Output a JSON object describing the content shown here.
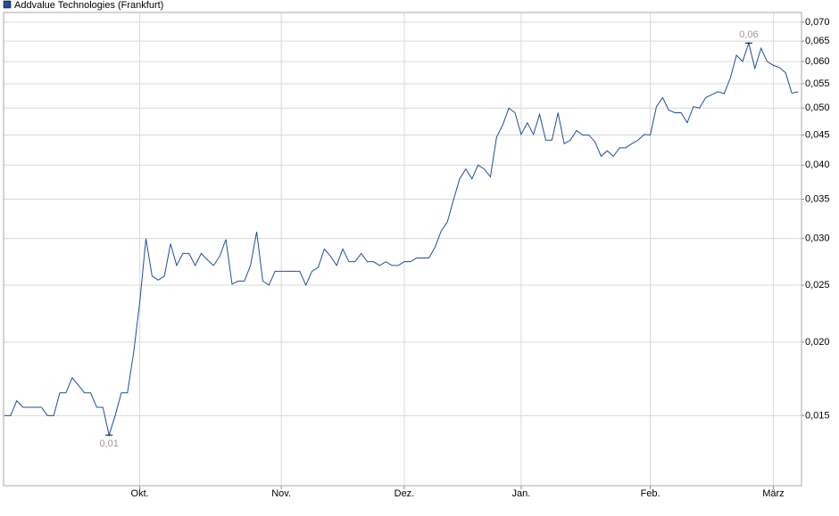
{
  "chart_data": {
    "type": "line",
    "ylog": true,
    "grid": true,
    "legend": "top-left",
    "ylim": [
      0.0114,
      0.0727
    ],
    "yticks": [
      {
        "value": 0.015,
        "label": "0,015"
      },
      {
        "value": 0.02,
        "label": "0,020"
      },
      {
        "value": 0.025,
        "label": "0,025"
      },
      {
        "value": 0.03,
        "label": "0,030"
      },
      {
        "value": 0.035,
        "label": "0,035"
      },
      {
        "value": 0.04,
        "label": "0,040"
      },
      {
        "value": 0.045,
        "label": "0,045"
      },
      {
        "value": 0.05,
        "label": "0,050"
      },
      {
        "value": 0.055,
        "label": "0,055"
      },
      {
        "value": 0.06,
        "label": "0,060"
      },
      {
        "value": 0.065,
        "label": "0,065"
      },
      {
        "value": 0.07,
        "label": "0,070"
      }
    ],
    "xlim": [
      0,
      129
    ],
    "xticks": [
      {
        "value": 22,
        "label": "Okt."
      },
      {
        "value": 45,
        "label": "Nov."
      },
      {
        "value": 65,
        "label": "Dez."
      },
      {
        "value": 84,
        "label": "Jan."
      },
      {
        "value": 105,
        "label": "Feb."
      },
      {
        "value": 125,
        "label": "März"
      }
    ],
    "series": [
      {
        "name": "Addvalue Technologies (Frankfurt)",
        "color": "#1f4e9c",
        "values": [
          0.015,
          0.015,
          0.0159,
          0.0155,
          0.0155,
          0.0155,
          0.0155,
          0.015,
          0.015,
          0.0164,
          0.0164,
          0.0174,
          0.0169,
          0.0164,
          0.0164,
          0.0155,
          0.0155,
          0.0139,
          0.015,
          0.0164,
          0.0164,
          0.0192,
          0.0234,
          0.03,
          0.0259,
          0.0255,
          0.0259,
          0.0294,
          0.027,
          0.0283,
          0.0283,
          0.027,
          0.0283,
          0.0276,
          0.027,
          0.028,
          0.0299,
          0.0251,
          0.0254,
          0.0254,
          0.027,
          0.0308,
          0.0254,
          0.025,
          0.0264,
          0.0264,
          0.0264,
          0.0264,
          0.0264,
          0.025,
          0.0264,
          0.0268,
          0.0288,
          0.028,
          0.027,
          0.0288,
          0.0274,
          0.0274,
          0.0283,
          0.0274,
          0.0274,
          0.027,
          0.0274,
          0.027,
          0.027,
          0.0274,
          0.0274,
          0.0278,
          0.0278,
          0.0278,
          0.029,
          0.0309,
          0.032,
          0.0349,
          0.0379,
          0.0394,
          0.0379,
          0.04,
          0.0394,
          0.0382,
          0.0446,
          0.0468,
          0.05,
          0.0491,
          0.0451,
          0.0472,
          0.0451,
          0.0488,
          0.0441,
          0.0441,
          0.0491,
          0.0435,
          0.0441,
          0.0458,
          0.045,
          0.045,
          0.0438,
          0.0414,
          0.0423,
          0.0414,
          0.0428,
          0.0428,
          0.0435,
          0.0441,
          0.0451,
          0.045,
          0.0503,
          0.0521,
          0.0496,
          0.0491,
          0.0491,
          0.0472,
          0.0503,
          0.05,
          0.0521,
          0.0527,
          0.0533,
          0.0529,
          0.0562,
          0.0615,
          0.06,
          0.0645,
          0.0584,
          0.0632,
          0.06,
          0.0591,
          0.0586,
          0.0574,
          0.053,
          0.0533
        ],
        "value_labels": [
          null,
          null,
          null,
          null,
          null,
          null,
          null,
          null,
          null,
          null,
          null,
          null,
          null,
          null,
          null,
          null,
          null,
          "0,01",
          null,
          null,
          null,
          null,
          null,
          null,
          null,
          null,
          null,
          null,
          null,
          null,
          null,
          null,
          null,
          null,
          null,
          null,
          null,
          null,
          null,
          null,
          null,
          null,
          null,
          null,
          null,
          null,
          null,
          null,
          null,
          null,
          null,
          null,
          null,
          null,
          null,
          null,
          null,
          null,
          null,
          null,
          null,
          null,
          null,
          null,
          null,
          null,
          null,
          null,
          null,
          null,
          null,
          null,
          null,
          null,
          null,
          null,
          null,
          null,
          null,
          null,
          null,
          null,
          null,
          null,
          null,
          null,
          null,
          null,
          null,
          null,
          null,
          null,
          null,
          null,
          null,
          null,
          null,
          null,
          null,
          null,
          null,
          null,
          null,
          null,
          null,
          null,
          null,
          null,
          null,
          null,
          null,
          null,
          null,
          null,
          null,
          null,
          null,
          null,
          null,
          null,
          null,
          "0,06",
          null,
          null,
          null,
          null,
          null,
          null,
          null,
          null
        ]
      }
    ]
  }
}
